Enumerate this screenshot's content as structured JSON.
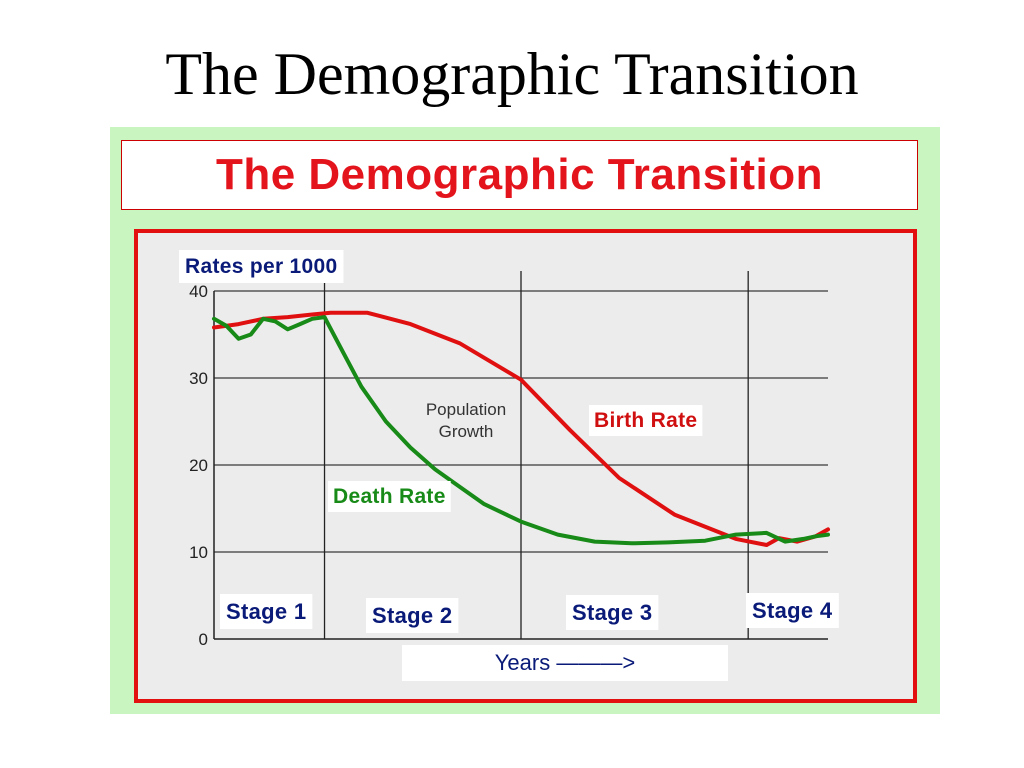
{
  "slide": {
    "title": "The Demographic Transition"
  },
  "chart_data": {
    "type": "line",
    "title": "The Demographic Transition",
    "ylabel": "Rates per 1000",
    "xlabel": "Years ———>",
    "ylim": [
      0,
      40
    ],
    "xlim": [
      0,
      100
    ],
    "yticks": [
      "40",
      "30",
      "20",
      "10",
      "0"
    ],
    "stages": [
      "Stage 1",
      "Stage 2",
      "Stage 3",
      "Stage 4"
    ],
    "stage_boundaries": [
      18,
      50,
      87
    ],
    "annotation": "Population\nGrowth",
    "series": [
      {
        "name": "Birth Rate",
        "color": "#e01010",
        "x": [
          0,
          4,
          8,
          12,
          16,
          19,
          25,
          32,
          40,
          50,
          58,
          66,
          75,
          85,
          90,
          92,
          95,
          98,
          100
        ],
        "y": [
          35.8,
          36.2,
          36.8,
          37,
          37.3,
          37.5,
          37.5,
          36.2,
          34,
          29.8,
          24,
          18.5,
          14.3,
          11.5,
          10.8,
          11.6,
          11.2,
          11.8,
          12.6
        ]
      },
      {
        "name": "Death Rate",
        "color": "#178a17",
        "x": [
          0,
          2,
          4,
          6,
          8,
          10,
          12,
          14,
          16,
          18,
          21,
          24,
          28,
          32,
          36,
          40,
          44,
          50,
          56,
          62,
          68,
          74,
          80,
          85,
          90,
          93,
          96,
          98,
          100
        ],
        "y": [
          36.8,
          36,
          34.5,
          35,
          36.8,
          36.5,
          35.6,
          36.2,
          36.8,
          37,
          33,
          29,
          25,
          22,
          19.5,
          17.5,
          15.5,
          13.5,
          12,
          11.2,
          11,
          11.1,
          11.3,
          12.0,
          12.2,
          11.2,
          11.5,
          11.8,
          12
        ]
      }
    ],
    "grid": true,
    "legend": "inline labels"
  }
}
